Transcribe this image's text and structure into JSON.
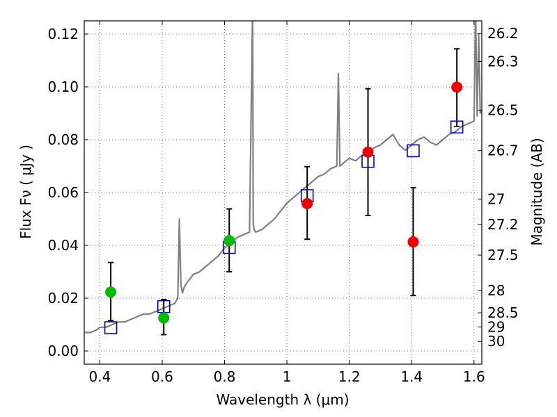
{
  "chart_data": {
    "type": "scatter",
    "title": "",
    "xlabel": "Wavelength  λ (μm)",
    "ylabel": "Flux  Fν  ( μJy )",
    "y2label": "Magnitude (AB)",
    "xlim": [
      0.35,
      1.625
    ],
    "ylim": [
      -0.005,
      0.125
    ],
    "grid": true,
    "x_ticks": [
      0.4,
      0.6,
      0.8,
      1.0,
      1.2,
      1.4,
      1.6
    ],
    "x_tick_labels": [
      "0.4",
      "0.6",
      "0.8",
      "1",
      "1.2",
      "1.4",
      "1.6"
    ],
    "y_ticks": [
      0.0,
      0.02,
      0.04,
      0.06,
      0.08,
      0.1,
      0.12
    ],
    "y_tick_labels": [
      "0.00",
      "0.02",
      "0.04",
      "0.06",
      "0.08",
      "0.10",
      "0.12"
    ],
    "y2_tick_labels": [
      "26.2",
      "26.3",
      "26.5",
      "26.7",
      "27",
      "27.2",
      "27.5",
      "28",
      "28.5",
      "29",
      "30"
    ],
    "colors": {
      "spectrum": "#808080",
      "green_points": "#00bb00",
      "red_points": "#ee0000",
      "model_squares": "#0000cc",
      "errorbars": "#000000"
    },
    "series": [
      {
        "name": "spectrum",
        "kind": "line",
        "x": [
          0.35,
          0.37,
          0.39,
          0.4,
          0.42,
          0.44,
          0.46,
          0.48,
          0.5,
          0.52,
          0.54,
          0.56,
          0.58,
          0.6,
          0.62,
          0.64,
          0.65,
          0.655,
          0.66,
          0.665,
          0.67,
          0.68,
          0.7,
          0.72,
          0.74,
          0.76,
          0.78,
          0.8,
          0.82,
          0.84,
          0.86,
          0.88,
          0.89,
          0.892,
          0.895,
          0.9,
          0.92,
          0.94,
          0.96,
          0.98,
          1.0,
          1.02,
          1.04,
          1.06,
          1.08,
          1.1,
          1.12,
          1.14,
          1.16,
          1.165,
          1.17,
          1.18,
          1.19,
          1.2,
          1.22,
          1.24,
          1.26,
          1.28,
          1.3,
          1.32,
          1.34,
          1.36,
          1.38,
          1.4,
          1.42,
          1.44,
          1.46,
          1.48,
          1.5,
          1.52,
          1.54,
          1.56,
          1.58,
          1.6,
          1.605,
          1.61,
          1.615,
          1.62,
          1.625
        ],
        "y": [
          0.007,
          0.007,
          0.008,
          0.009,
          0.009,
          0.01,
          0.011,
          0.011,
          0.012,
          0.013,
          0.014,
          0.014,
          0.015,
          0.016,
          0.017,
          0.018,
          0.02,
          0.05,
          0.025,
          0.022,
          0.024,
          0.026,
          0.029,
          0.03,
          0.032,
          0.034,
          0.036,
          0.039,
          0.041,
          0.043,
          0.044,
          0.045,
          0.13,
          0.048,
          0.046,
          0.045,
          0.046,
          0.048,
          0.05,
          0.053,
          0.056,
          0.058,
          0.06,
          0.062,
          0.064,
          0.066,
          0.067,
          0.069,
          0.07,
          0.105,
          0.07,
          0.071,
          0.072,
          0.073,
          0.072,
          0.074,
          0.075,
          0.077,
          0.078,
          0.08,
          0.082,
          0.078,
          0.076,
          0.078,
          0.08,
          0.081,
          0.079,
          0.078,
          0.08,
          0.082,
          0.083,
          0.085,
          0.086,
          0.087,
          0.13,
          0.089,
          0.12,
          0.09,
          0.091
        ]
      },
      {
        "name": "green points",
        "kind": "errorbar",
        "x": [
          0.435,
          0.605,
          0.815
        ],
        "y": [
          0.0223,
          0.0125,
          0.0418
        ],
        "yerr_low": [
          0.0108,
          0.0063,
          0.0118
        ],
        "yerr_high": [
          0.0112,
          0.007,
          0.012
        ]
      },
      {
        "name": "red points",
        "kind": "errorbar",
        "x": [
          1.065,
          1.26,
          1.405,
          1.545
        ],
        "y": [
          0.0558,
          0.0753,
          0.0413,
          0.0999
        ],
        "yerr_low": [
          0.0135,
          0.024,
          0.0203,
          0.0149
        ],
        "yerr_high": [
          0.014,
          0.024,
          0.0205,
          0.0145
        ]
      },
      {
        "name": "model squares",
        "kind": "marker",
        "x": [
          0.435,
          0.605,
          0.815,
          1.065,
          1.26,
          1.405,
          1.545
        ],
        "y": [
          0.0088,
          0.0168,
          0.0392,
          0.0588,
          0.0718,
          0.0758,
          0.0848
        ]
      }
    ]
  }
}
